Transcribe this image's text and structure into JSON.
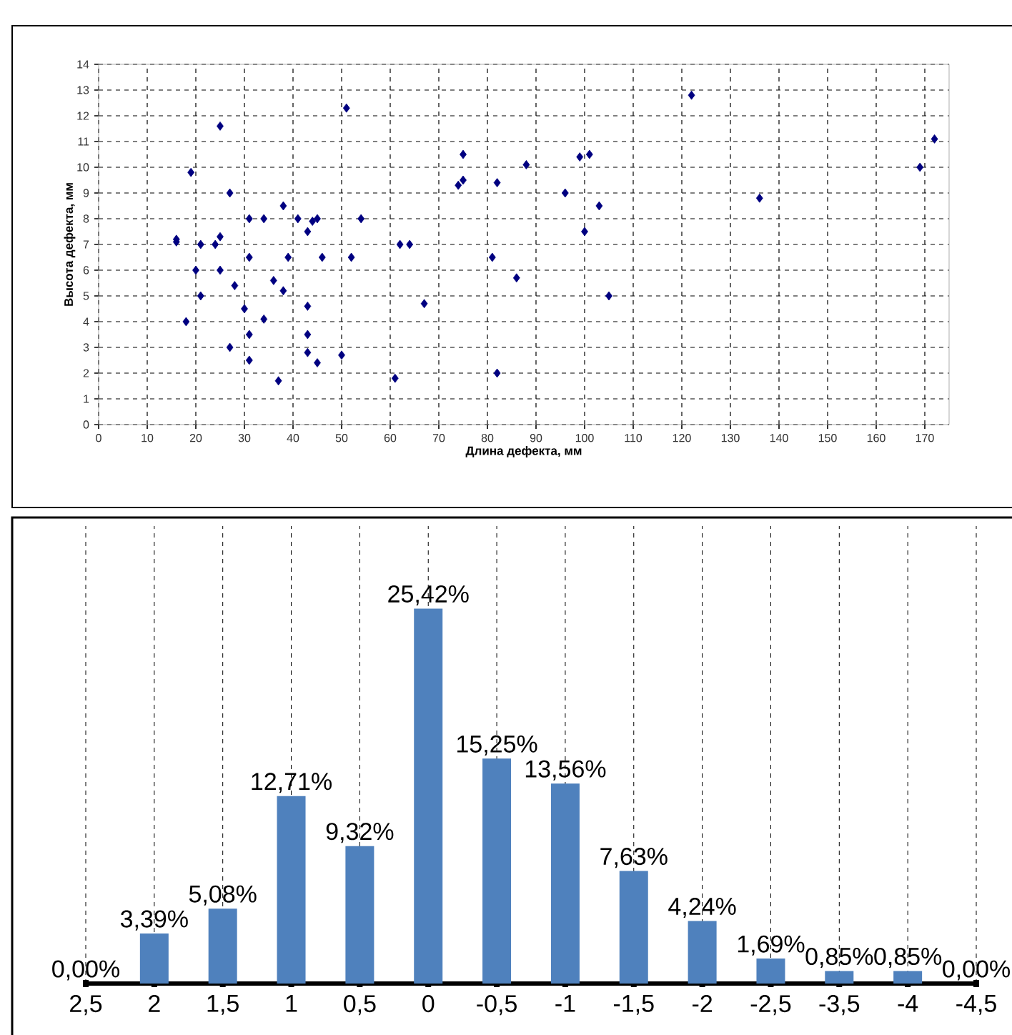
{
  "chart_data": [
    {
      "type": "scatter",
      "xlabel": "Длина дефекта, мм",
      "ylabel": "Высота дефекта, мм",
      "color": "#000080",
      "marker": "diamond",
      "grid": true,
      "xlim": [
        0,
        175
      ],
      "ylim": [
        0,
        14
      ],
      "xticks": [
        0,
        10,
        20,
        30,
        40,
        50,
        60,
        70,
        80,
        90,
        100,
        110,
        120,
        130,
        140,
        150,
        160,
        170
      ],
      "yticks": [
        0,
        1,
        2,
        3,
        4,
        5,
        6,
        7,
        8,
        9,
        10,
        11,
        12,
        13,
        14
      ],
      "x": [
        16,
        16,
        19,
        25,
        27,
        21,
        24,
        25,
        20,
        25,
        21,
        28,
        18,
        27,
        31,
        34,
        31,
        30,
        31,
        31,
        34,
        36,
        38,
        38,
        39,
        37,
        41,
        43,
        44,
        45,
        46,
        43,
        43,
        43,
        45,
        50,
        51,
        52,
        54,
        62,
        64,
        67,
        61,
        75,
        74,
        75,
        82,
        88,
        81,
        86,
        82,
        96,
        99,
        101,
        103,
        100,
        105,
        122,
        136,
        169,
        172
      ],
      "values": [
        7.1,
        7.2,
        9.8,
        11.6,
        9.0,
        7.0,
        7.0,
        7.3,
        6.0,
        6.0,
        5.0,
        5.4,
        4.0,
        3.0,
        8.0,
        8.0,
        6.5,
        4.5,
        3.5,
        2.5,
        4.1,
        5.6,
        5.2,
        8.5,
        6.5,
        1.7,
        8.0,
        7.5,
        7.9,
        8.0,
        6.5,
        4.6,
        3.5,
        2.8,
        2.4,
        2.7,
        12.3,
        6.5,
        8.0,
        7.0,
        7.0,
        4.7,
        1.8,
        10.5,
        9.3,
        9.5,
        9.4,
        10.1,
        6.5,
        5.7,
        2.0,
        9.0,
        10.4,
        10.5,
        8.5,
        7.5,
        5.0,
        12.8,
        8.8,
        10.0,
        11.1
      ]
    },
    {
      "type": "bar",
      "color": "#4f81bd",
      "grid": "x",
      "tick_labels": "x",
      "categories": [
        "2,5",
        "2",
        "1,5",
        "1",
        "0,5",
        "0",
        "-0,5",
        "-1",
        "-1,5",
        "-2",
        "-2,5",
        "-3,5",
        "-4",
        "-4,5"
      ],
      "values": [
        0,
        3.39,
        5.08,
        12.71,
        9.32,
        25.42,
        15.25,
        13.56,
        7.63,
        4.24,
        1.69,
        0.85,
        0.85,
        0
      ],
      "value_labels": [
        "0,00%",
        "3,39%",
        "5,08%",
        "12,71%",
        "9,32%",
        "25,42%",
        "15,25%",
        "13,56%",
        "7,63%",
        "4,24%",
        "1,69%",
        "0,85%",
        "0,85%",
        "0,00%"
      ]
    }
  ]
}
